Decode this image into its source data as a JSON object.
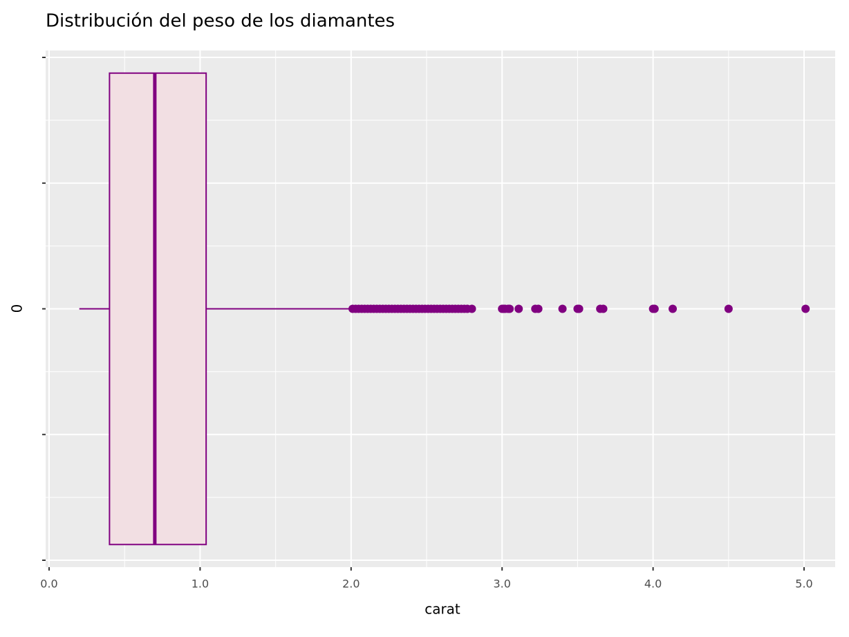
{
  "chart_data": {
    "type": "boxplot",
    "title": "Distribución del peso de los diamantes",
    "x_label": "carat",
    "y_label": "0",
    "min": 0.2,
    "q1": 0.4,
    "median": 0.7,
    "q3": 1.04,
    "max": 2.0,
    "outliers": [
      2.01,
      2.03,
      2.05,
      2.07,
      2.09,
      2.11,
      2.13,
      2.15,
      2.17,
      2.19,
      2.21,
      2.23,
      2.25,
      2.27,
      2.29,
      2.31,
      2.33,
      2.35,
      2.37,
      2.39,
      2.41,
      2.43,
      2.45,
      2.47,
      2.49,
      2.51,
      2.53,
      2.55,
      2.57,
      2.59,
      2.61,
      2.63,
      2.65,
      2.67,
      2.69,
      2.71,
      2.73,
      2.75,
      2.77,
      2.8,
      3.0,
      3.01,
      3.02,
      3.04,
      3.05,
      3.11,
      3.22,
      3.24,
      3.4,
      3.5,
      3.51,
      3.65,
      3.67,
      4.0,
      4.01,
      4.13,
      4.5,
      5.01
    ],
    "color": "#800080",
    "fill": "#f2dfe3",
    "xlim": [
      -0.023,
      5.206
    ],
    "xticks": [
      {
        "value": 0,
        "label": "0.0"
      },
      {
        "value": 1,
        "label": "1.0"
      },
      {
        "value": 2,
        "label": "2.0"
      },
      {
        "value": 3,
        "label": "3.0"
      },
      {
        "value": 4,
        "label": "4.0"
      },
      {
        "value": 5,
        "label": "5.0"
      }
    ],
    "ylim": [
      -0.411,
      0.411
    ],
    "yticks": [
      -0.4,
      -0.2,
      0,
      0.2,
      0.4
    ],
    "grid": true
  }
}
